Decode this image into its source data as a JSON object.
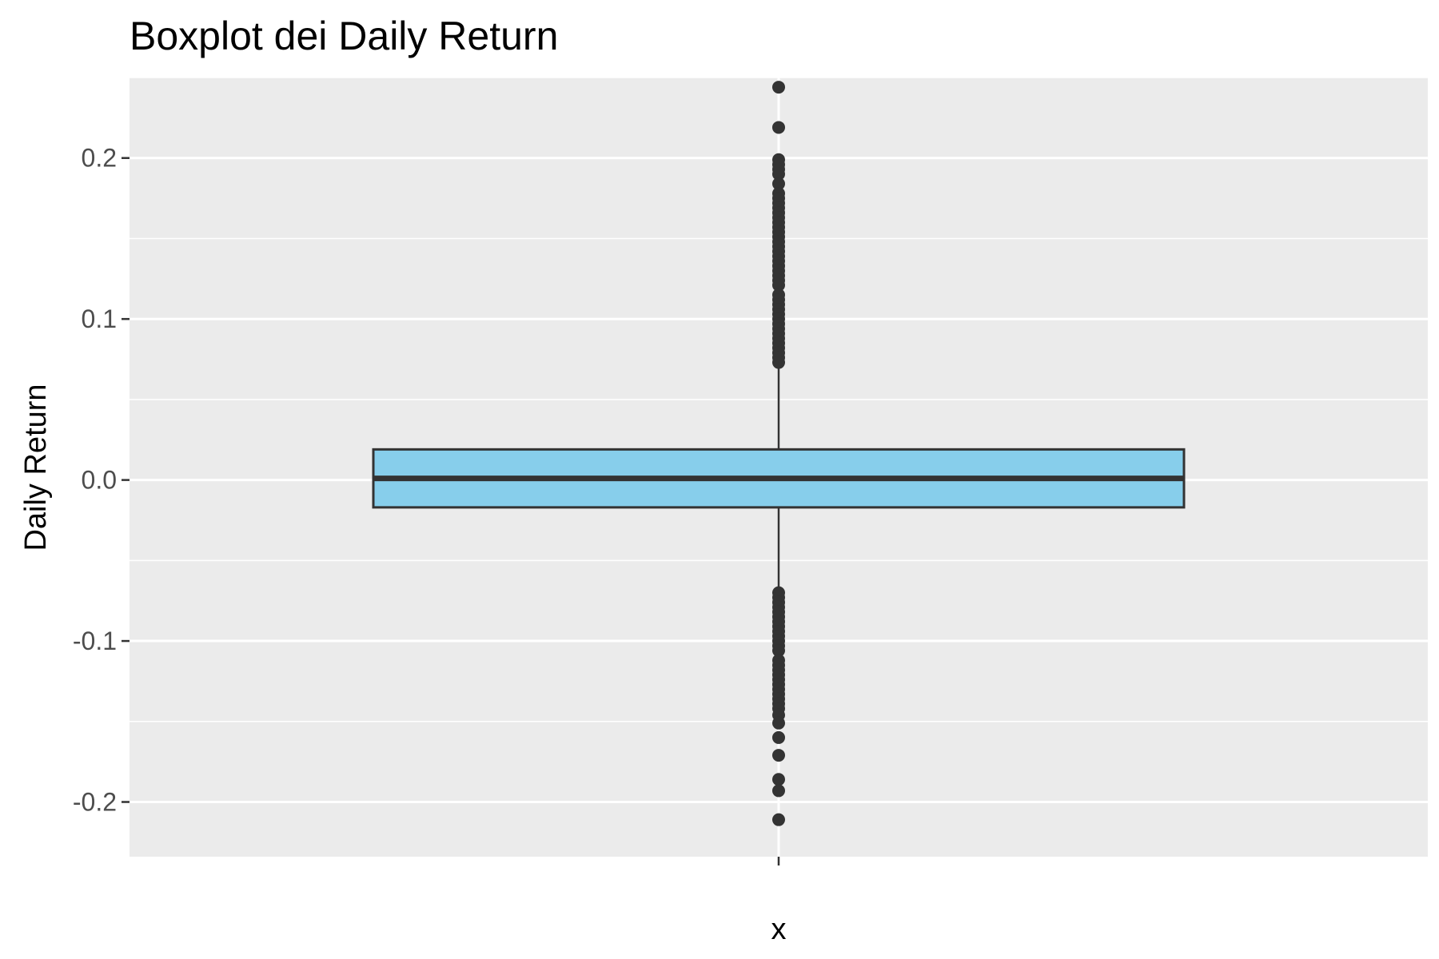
{
  "chart_data": {
    "type": "boxplot",
    "title": "Boxplot dei Daily Return",
    "xlabel": "x",
    "ylabel": "Daily Return",
    "ylim": [
      -0.234,
      0.25
    ],
    "y_ticks": [
      -0.2,
      -0.1,
      0.0,
      0.1,
      0.2
    ],
    "y_tick_labels": [
      "-0.2",
      "-0.1",
      "0.0",
      "0.1",
      "0.2"
    ],
    "grid": true,
    "box": {
      "q1": -0.017,
      "median": 0.001,
      "q3": 0.019,
      "whisker_low": -0.069,
      "whisker_high": 0.072
    },
    "outliers": [
      0.244,
      0.219,
      0.199,
      0.196,
      0.193,
      0.19,
      0.184,
      0.178,
      0.175,
      0.172,
      0.169,
      0.166,
      0.163,
      0.16,
      0.157,
      0.154,
      0.151,
      0.148,
      0.145,
      0.142,
      0.139,
      0.136,
      0.133,
      0.13,
      0.127,
      0.124,
      0.121,
      0.115,
      0.112,
      0.109,
      0.106,
      0.103,
      0.1,
      0.097,
      0.094,
      0.091,
      0.088,
      0.085,
      0.082,
      0.079,
      0.076,
      0.073,
      -0.07,
      -0.073,
      -0.076,
      -0.079,
      -0.082,
      -0.085,
      -0.088,
      -0.091,
      -0.094,
      -0.097,
      -0.1,
      -0.103,
      -0.106,
      -0.112,
      -0.115,
      -0.118,
      -0.121,
      -0.124,
      -0.127,
      -0.13,
      -0.133,
      -0.136,
      -0.139,
      -0.142,
      -0.146,
      -0.151,
      -0.16,
      -0.171,
      -0.186,
      -0.193,
      -0.211
    ],
    "colors": {
      "panel": "#ebebeb",
      "grid": "#ffffff",
      "box_fill": "#87ceeb",
      "box_line": "#333333",
      "point": "#333333"
    }
  }
}
